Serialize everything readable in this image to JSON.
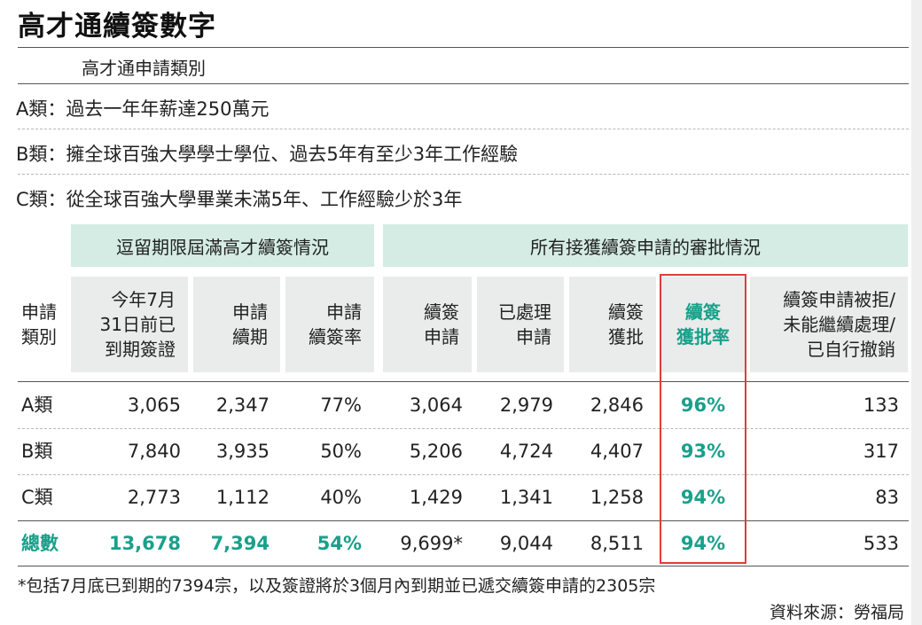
{
  "title": "高才通續簽數字",
  "category_section_title": "高才通申請類別",
  "categories_desc": [
    {
      "label": "A類：",
      "text": "過去一年年薪達250萬元"
    },
    {
      "label": "B類：",
      "text": "擁全球百強大學學士學位、過去5年有至少3年工作經驗"
    },
    {
      "label": "C類：",
      "text": "從全球百強大學畢業未滿5年、工作經驗少於3年"
    }
  ],
  "group_headers": {
    "left": "逗留期限屆滿高才續簽情況",
    "right": "所有接獲續簽申請的審批情況"
  },
  "row_header": [
    "申請",
    "類別"
  ],
  "column_headers": [
    [
      "今年7月",
      "31日前已",
      "到期簽證"
    ],
    [
      "申請",
      "續期"
    ],
    [
      "申請",
      "續簽率"
    ],
    [
      "續簽",
      "申請"
    ],
    [
      "已處理",
      "申請"
    ],
    [
      "續簽",
      "獲批"
    ],
    [
      "續簽",
      "獲批率"
    ],
    [
      "續簽申請被拒/",
      "未能繼續處理/",
      "已自行撤銷"
    ]
  ],
  "rows": [
    {
      "label": "A類",
      "cells": [
        "3,065",
        "2,347",
        "77%",
        "3,064",
        "2,979",
        "2,846",
        "96%",
        "133"
      ]
    },
    {
      "label": "B類",
      "cells": [
        "7,840",
        "3,935",
        "50%",
        "5,206",
        "4,724",
        "4,407",
        "93%",
        "317"
      ]
    },
    {
      "label": "C類",
      "cells": [
        "2,773",
        "1,112",
        "40%",
        "1,429",
        "1,341",
        "1,258",
        "94%",
        "83"
      ]
    },
    {
      "label": "總數",
      "cells": [
        "13,678",
        "7,394",
        "54%",
        "9,699*",
        "9,044",
        "8,511",
        "94%",
        "533"
      ]
    }
  ],
  "footnote": "*包括7月底已到期的7394宗，以及簽證將於3個月內到期並已遞交續簽申請的2305宗",
  "source": "資料來源：勞福局",
  "colors": {
    "accent_green": "#1aa08a",
    "band_bg": "#d4ece4",
    "header_bg": "#e9eceb",
    "highlight_box": "#e23b3b"
  },
  "chart_data": {
    "type": "table",
    "title": "高才通續簽數字",
    "row_labels": [
      "A類",
      "B類",
      "C類",
      "總數"
    ],
    "columns": [
      "今年7月31日前已到期簽證",
      "申請續期",
      "申請續簽率",
      "續簽申請",
      "已處理申請",
      "續簽獲批",
      "續簽獲批率",
      "續簽申請被拒/未能繼續處理/已自行撤銷"
    ],
    "values": [
      [
        3065,
        2347,
        77,
        3064,
        2979,
        2846,
        96,
        133
      ],
      [
        7840,
        3935,
        50,
        5206,
        4724,
        4407,
        93,
        317
      ],
      [
        2773,
        1112,
        40,
        1429,
        1341,
        1258,
        94,
        83
      ],
      [
        13678,
        7394,
        54,
        9699,
        9044,
        8511,
        94,
        533
      ]
    ]
  }
}
